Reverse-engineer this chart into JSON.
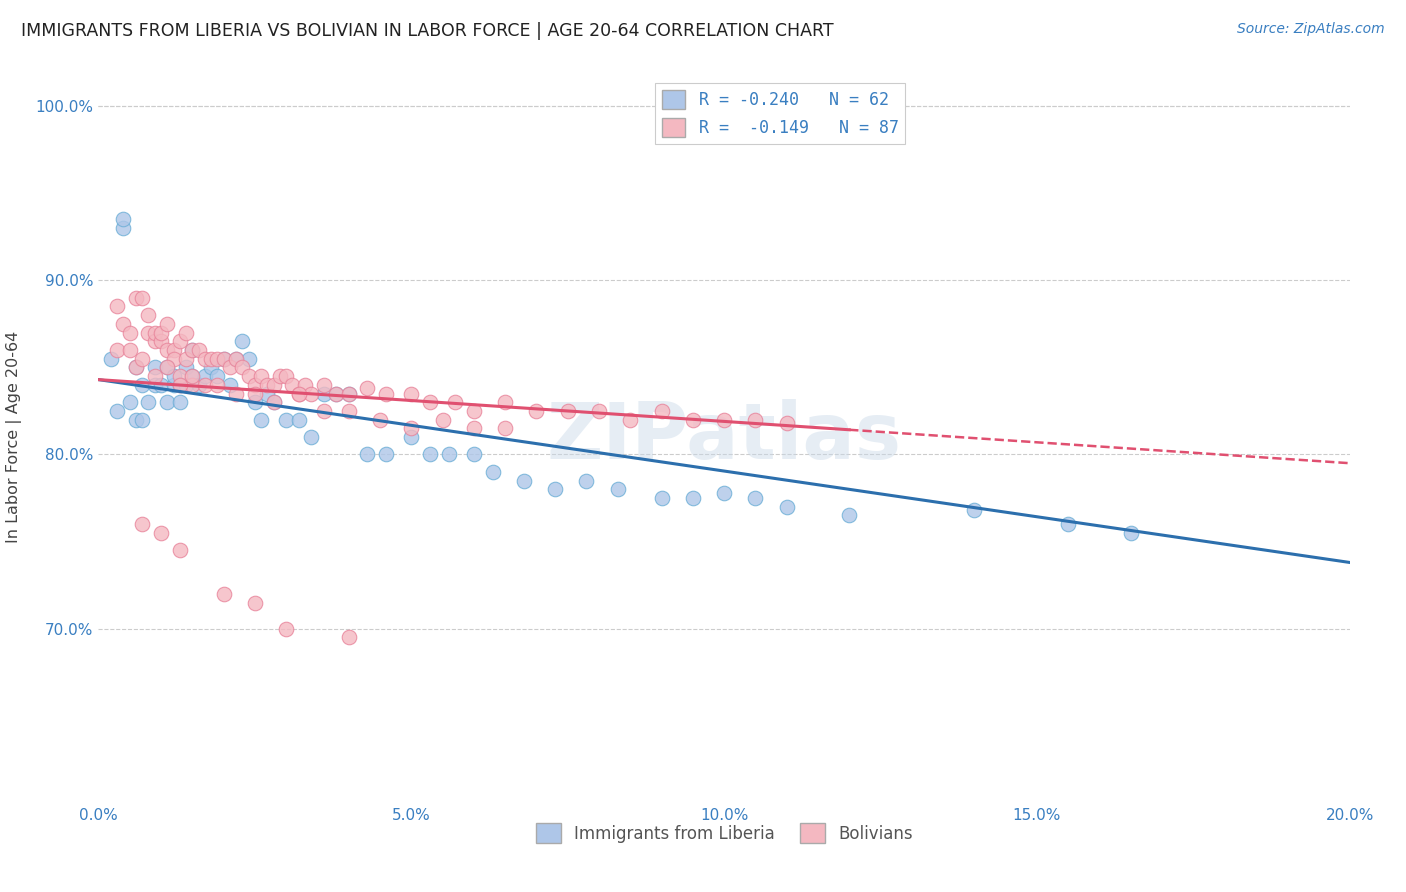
{
  "title": "IMMIGRANTS FROM LIBERIA VS BOLIVIAN IN LABOR FORCE | AGE 20-64 CORRELATION CHART",
  "source": "Source: ZipAtlas.com",
  "ylabel": "In Labor Force | Age 20-64",
  "xlim": [
    0.0,
    0.2
  ],
  "ylim": [
    0.6,
    1.02
  ],
  "yticks": [
    0.7,
    0.8,
    0.9,
    1.0
  ],
  "ytick_labels": [
    "70.0%",
    "80.0%",
    "90.0%",
    "100.0%"
  ],
  "xticks": [
    0.0,
    0.05,
    0.1,
    0.15,
    0.2
  ],
  "xtick_labels": [
    "0.0%",
    "5.0%",
    "10.0%",
    "15.0%",
    "20.0%"
  ],
  "watermark": "ZIPatlas",
  "liberia_color": "#aec6e8",
  "liberia_edge": "#6baed6",
  "bolivia_color": "#f4b8c1",
  "bolivia_edge": "#e8839a",
  "trendline_liberia_color": "#2c6fad",
  "trendline_bolivia_color": "#e05070",
  "legend_label_liberia": "R = -0.240   N = 62",
  "legend_label_bolivia": "R =  -0.149   N = 87",
  "bottom_label_liberia": "Immigrants from Liberia",
  "bottom_label_bolivia": "Bolivians",
  "trendline_lib_x0": 0.0,
  "trendline_lib_y0": 0.843,
  "trendline_lib_x1": 0.2,
  "trendline_lib_y1": 0.738,
  "trendline_bol_x0": 0.0,
  "trendline_bol_y0": 0.843,
  "trendline_bol_x1": 0.2,
  "trendline_bol_y1": 0.795,
  "trendline_bol_solid_end": 0.12,
  "liberia_x": [
    0.002,
    0.003,
    0.004,
    0.004,
    0.005,
    0.006,
    0.006,
    0.007,
    0.007,
    0.008,
    0.009,
    0.009,
    0.01,
    0.011,
    0.011,
    0.012,
    0.012,
    0.013,
    0.013,
    0.014,
    0.014,
    0.015,
    0.015,
    0.016,
    0.017,
    0.018,
    0.019,
    0.02,
    0.021,
    0.022,
    0.023,
    0.024,
    0.025,
    0.026,
    0.027,
    0.028,
    0.03,
    0.032,
    0.034,
    0.036,
    0.038,
    0.04,
    0.043,
    0.046,
    0.05,
    0.053,
    0.056,
    0.06,
    0.063,
    0.068,
    0.073,
    0.078,
    0.083,
    0.09,
    0.095,
    0.1,
    0.105,
    0.11,
    0.12,
    0.14,
    0.155,
    0.165
  ],
  "liberia_y": [
    0.855,
    0.825,
    0.93,
    0.935,
    0.83,
    0.85,
    0.82,
    0.82,
    0.84,
    0.83,
    0.84,
    0.85,
    0.84,
    0.83,
    0.85,
    0.84,
    0.845,
    0.83,
    0.84,
    0.85,
    0.84,
    0.86,
    0.845,
    0.84,
    0.845,
    0.85,
    0.845,
    0.855,
    0.84,
    0.855,
    0.865,
    0.855,
    0.83,
    0.82,
    0.835,
    0.83,
    0.82,
    0.82,
    0.81,
    0.835,
    0.835,
    0.835,
    0.8,
    0.8,
    0.81,
    0.8,
    0.8,
    0.8,
    0.79,
    0.785,
    0.78,
    0.785,
    0.78,
    0.775,
    0.775,
    0.778,
    0.775,
    0.77,
    0.765,
    0.768,
    0.76,
    0.755
  ],
  "bolivia_x": [
    0.003,
    0.004,
    0.005,
    0.006,
    0.006,
    0.007,
    0.008,
    0.008,
    0.009,
    0.009,
    0.01,
    0.01,
    0.011,
    0.011,
    0.012,
    0.012,
    0.013,
    0.013,
    0.014,
    0.014,
    0.015,
    0.015,
    0.016,
    0.017,
    0.018,
    0.019,
    0.02,
    0.021,
    0.022,
    0.023,
    0.024,
    0.025,
    0.026,
    0.027,
    0.028,
    0.029,
    0.03,
    0.031,
    0.032,
    0.033,
    0.034,
    0.036,
    0.038,
    0.04,
    0.043,
    0.046,
    0.05,
    0.053,
    0.057,
    0.06,
    0.065,
    0.07,
    0.075,
    0.08,
    0.085,
    0.09,
    0.095,
    0.1,
    0.105,
    0.11,
    0.003,
    0.005,
    0.007,
    0.009,
    0.011,
    0.013,
    0.015,
    0.017,
    0.019,
    0.022,
    0.025,
    0.028,
    0.032,
    0.036,
    0.04,
    0.045,
    0.05,
    0.055,
    0.06,
    0.065,
    0.007,
    0.01,
    0.013,
    0.02,
    0.025,
    0.03,
    0.04
  ],
  "bolivia_y": [
    0.885,
    0.875,
    0.87,
    0.85,
    0.89,
    0.89,
    0.88,
    0.87,
    0.865,
    0.87,
    0.865,
    0.87,
    0.875,
    0.86,
    0.86,
    0.855,
    0.865,
    0.845,
    0.855,
    0.87,
    0.86,
    0.84,
    0.86,
    0.855,
    0.855,
    0.855,
    0.855,
    0.85,
    0.855,
    0.85,
    0.845,
    0.84,
    0.845,
    0.84,
    0.84,
    0.845,
    0.845,
    0.84,
    0.835,
    0.84,
    0.835,
    0.84,
    0.835,
    0.835,
    0.838,
    0.835,
    0.835,
    0.83,
    0.83,
    0.825,
    0.83,
    0.825,
    0.825,
    0.825,
    0.82,
    0.825,
    0.82,
    0.82,
    0.82,
    0.818,
    0.86,
    0.86,
    0.855,
    0.845,
    0.85,
    0.84,
    0.845,
    0.84,
    0.84,
    0.835,
    0.835,
    0.83,
    0.835,
    0.825,
    0.825,
    0.82,
    0.815,
    0.82,
    0.815,
    0.815,
    0.76,
    0.755,
    0.745,
    0.72,
    0.715,
    0.7,
    0.695
  ]
}
